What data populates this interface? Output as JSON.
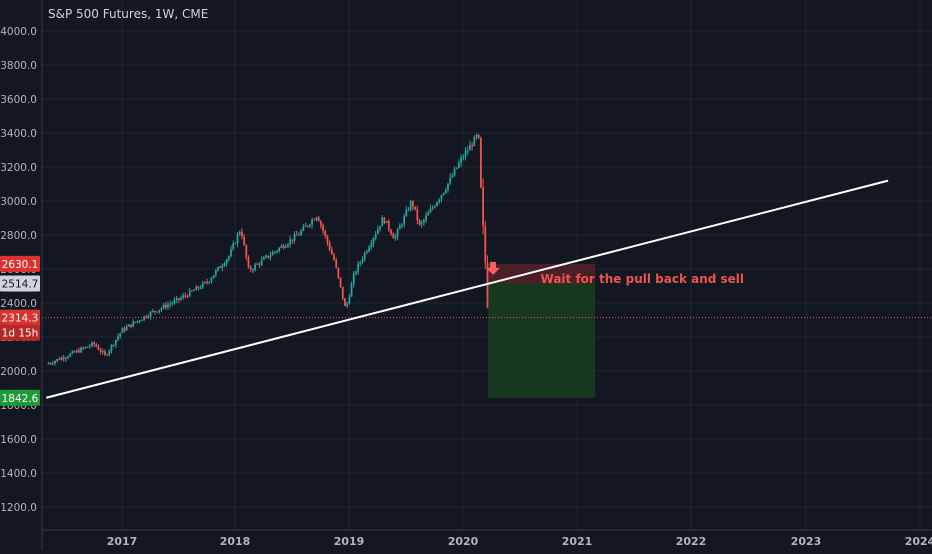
{
  "header": {
    "title": "S&P 500 Futures, 1W, CME"
  },
  "colors": {
    "background": "#131722",
    "grid": "#232632",
    "up": "#26a69a",
    "down": "#ef5350",
    "trendline": "#ffffff",
    "current_price_line": "#ef5350",
    "stop_zone": "#4a1f27",
    "target_zone": "#17371f",
    "annotation": "#ef5350",
    "axis_text": "#b2b5be"
  },
  "chart_data": {
    "type": "candlestick",
    "title": "S&P 500 Futures, 1W, CME",
    "x_tick_labels": [
      "2017",
      "2018",
      "2019",
      "2020",
      "2021",
      "2022",
      "2023",
      "2024"
    ],
    "y_tick_labels": [
      "1200.0",
      "1400.0",
      "1600.0",
      "1800.0",
      "2000.0",
      "2200.0",
      "2400.0",
      "2600.0",
      "2800.0",
      "3000.0",
      "3200.0",
      "3400.0",
      "3600.0",
      "3800.0",
      "4000.0"
    ],
    "ylim": [
      1080,
      4100
    ],
    "xlim": [
      2016.33,
      2024.2
    ],
    "grid": true,
    "price_path": [
      [
        2016.33,
        2040
      ],
      [
        2016.55,
        2100
      ],
      [
        2016.75,
        2160
      ],
      [
        2016.85,
        2090
      ],
      [
        2017.0,
        2240
      ],
      [
        2017.25,
        2340
      ],
      [
        2017.5,
        2420
      ],
      [
        2017.75,
        2520
      ],
      [
        2017.95,
        2680
      ],
      [
        2018.05,
        2840
      ],
      [
        2018.12,
        2590
      ],
      [
        2018.3,
        2680
      ],
      [
        2018.55,
        2800
      ],
      [
        2018.72,
        2920
      ],
      [
        2018.78,
        2810
      ],
      [
        2018.87,
        2650
      ],
      [
        2018.97,
        2360
      ],
      [
        2019.05,
        2580
      ],
      [
        2019.3,
        2900
      ],
      [
        2019.4,
        2780
      ],
      [
        2019.55,
        3000
      ],
      [
        2019.62,
        2850
      ],
      [
        2019.75,
        2980
      ],
      [
        2019.85,
        3080
      ],
      [
        2019.98,
        3240
      ],
      [
        2020.12,
        3380
      ],
      [
        2020.14,
        3350
      ],
      [
        2020.16,
        3000
      ],
      [
        2020.18,
        2780
      ],
      [
        2020.2,
        2600
      ],
      [
        2020.21,
        2460
      ],
      [
        2020.22,
        2340
      ]
    ],
    "trendline": {
      "start": [
        2016.33,
        1842.6
      ],
      "end": [
        2023.72,
        3120
      ]
    },
    "price_labels": [
      {
        "text": "2630.1",
        "price": 2630.1,
        "kind": "stop"
      },
      {
        "text": "2514.7",
        "price": 2514.7,
        "kind": "entry"
      },
      {
        "text": "2314.3",
        "price": 2314.3,
        "kind": "last"
      },
      {
        "text": "1d 15h",
        "price": 2226,
        "kind": "countdown"
      },
      {
        "text": "1842.6",
        "price": 1842.6,
        "kind": "target"
      }
    ],
    "position": {
      "entry": 2514.7,
      "stop": 2630.1,
      "target": 1842.6,
      "x_start": 2020.22,
      "x_end": 2021.16
    },
    "annotation": {
      "text": "Wait for the pull back and sell",
      "x": 2020.68,
      "y": 2540
    }
  }
}
